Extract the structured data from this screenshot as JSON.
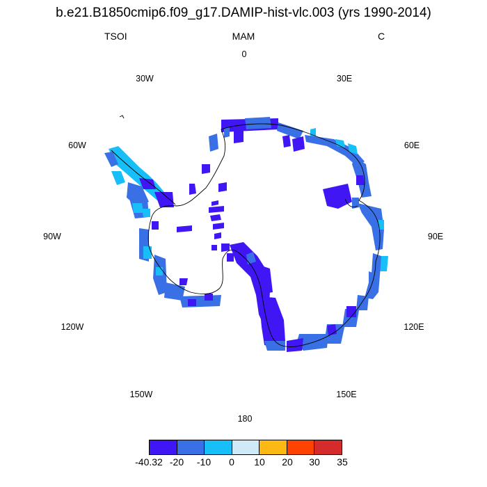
{
  "title": "b.e21.B1850cmip6.f09_g17.DAMIP-hist-vlc.003 (yrs 1990-2014)",
  "variable": "TSOI",
  "season": "MAM",
  "units": "C",
  "longitude_labels": {
    "lon_0": "0",
    "lon_30e": "30E",
    "lon_60e": "60E",
    "lon_90e": "90E",
    "lon_120e": "120E",
    "lon_150e": "150E",
    "lon_180": "180",
    "lon_150w": "150W",
    "lon_120w": "120W",
    "lon_90w": "90W",
    "lon_60w": "60W",
    "lon_30w": "30W"
  },
  "colorbar": {
    "colors": [
      "#4116f5",
      "#3a70e6",
      "#18bef7",
      "#cfe9f6",
      "#fdb913",
      "#fe4200",
      "#d52b2b"
    ],
    "ticks": [
      "-40.32",
      "-20",
      "-10",
      "0",
      "10",
      "20",
      "30",
      "35"
    ]
  },
  "map_data": {
    "type": "polar-stereographic-field",
    "region": "Antarctica",
    "dominant_ranges": [
      "-40.32 to -20",
      "-20 to -10",
      "-10 to 0"
    ]
  }
}
